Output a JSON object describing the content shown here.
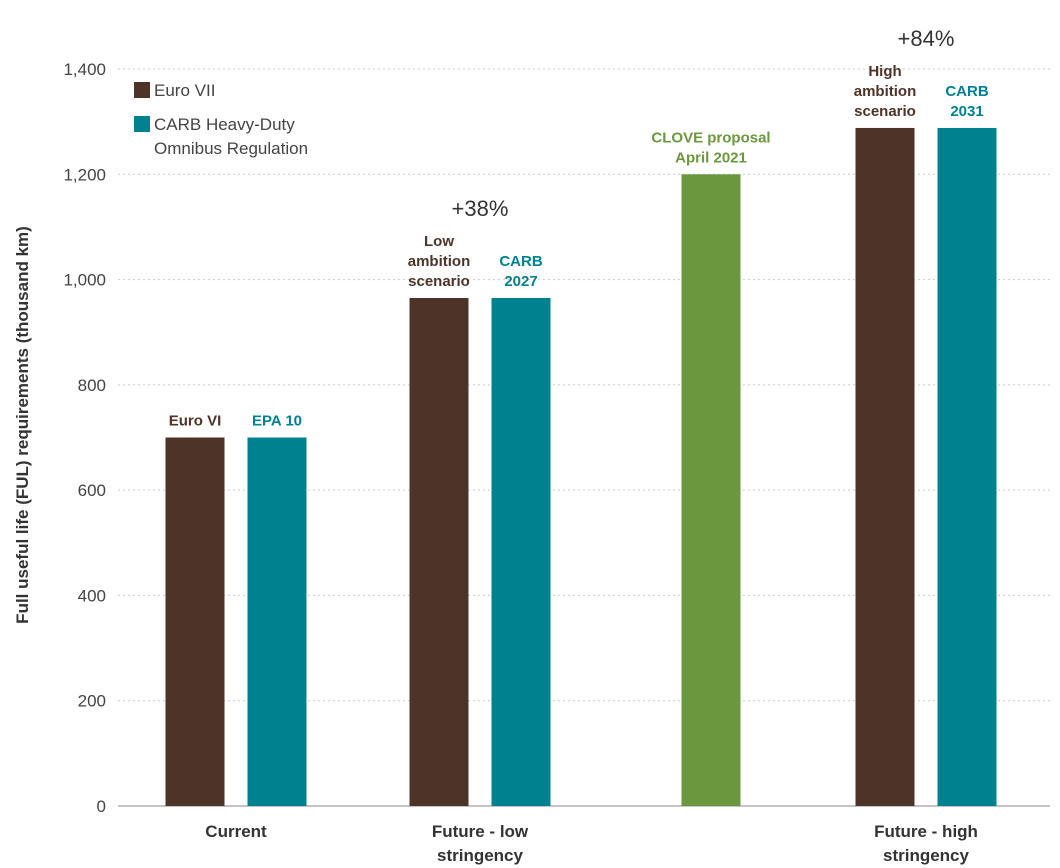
{
  "chart_data": {
    "type": "bar",
    "ylabel": "Full useful life (FUL) requirements (thousand km)",
    "ylim": [
      0,
      1400
    ],
    "yticks": [
      "0",
      "200",
      "400",
      "600",
      "800",
      "1,000",
      "1,200",
      "1,400"
    ],
    "grid": true,
    "legend_position": "top-left",
    "legend": [
      {
        "label": "Euro VII",
        "color": "#4e3329"
      },
      {
        "label": "CARB Heavy-Duty Omnibus Regulation",
        "color": "#00818f"
      }
    ],
    "categories": [
      {
        "label": "Current"
      },
      {
        "label": "Future - low stringency"
      },
      {
        "label": ""
      },
      {
        "label": "Future - high stringency"
      }
    ],
    "bars": [
      {
        "category": "Current",
        "label": "Euro VI",
        "value": 700,
        "color": "#4e3329"
      },
      {
        "category": "Current",
        "label": "EPA 10",
        "value": 700,
        "color": "#00818f"
      },
      {
        "category": "Future - low stringency",
        "label": "Low ambition scenario",
        "value": 965,
        "color": "#4e3329"
      },
      {
        "category": "Future - low stringency",
        "label": "CARB 2027",
        "value": 965,
        "color": "#00818f"
      },
      {
        "category": "",
        "label": "CLOVE proposal April 2021",
        "value": 1200,
        "color": "#6b983e"
      },
      {
        "category": "Future - high stringency",
        "label": "High ambition scenario",
        "value": 1288,
        "color": "#4e3329"
      },
      {
        "category": "Future - high stringency",
        "label": "CARB 2031",
        "value": 1288,
        "color": "#00818f"
      }
    ],
    "annotations": [
      {
        "text": "+38%",
        "category": "Future - low stringency"
      },
      {
        "text": "+84%",
        "category": "Future - high stringency"
      }
    ]
  }
}
